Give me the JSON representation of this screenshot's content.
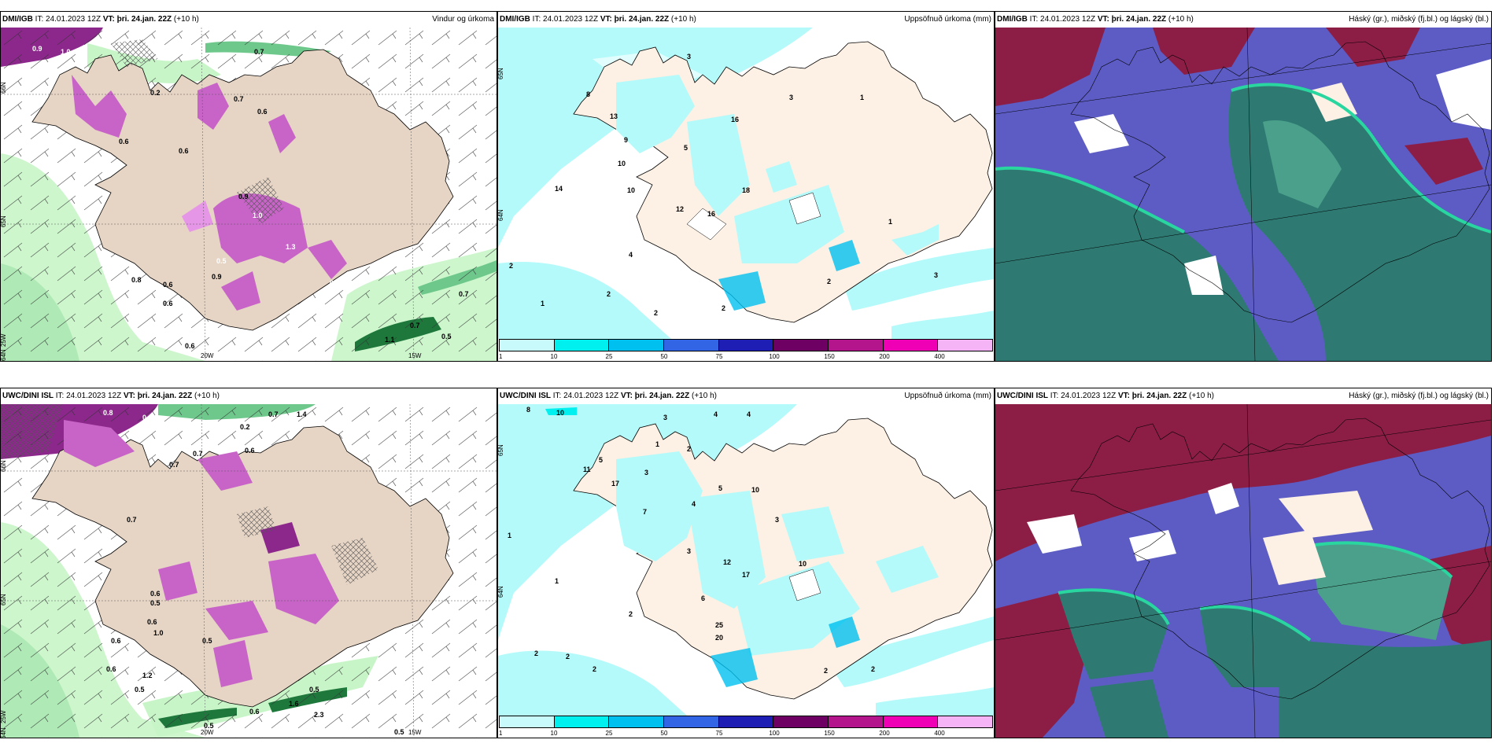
{
  "panels": [
    {
      "id": "p1",
      "model": "DMI/IGB",
      "it_label": "IT:",
      "it_value": "24.01.2023 12Z",
      "vt_label": "VT:",
      "vt_value": "þri. 24.jan. 22Z",
      "lead": "(+10 h)",
      "right_title": "Vindur og úrkoma",
      "axis_labels": [
        "66N",
        "65N",
        "64N",
        "25W",
        "20W",
        "15W"
      ],
      "value_labels": [
        "0.9",
        "1.0",
        "0.7",
        "0.2",
        "0.7",
        "0.6",
        "0.6",
        "0.9",
        "0.8",
        "0.6",
        "0.6",
        "0.7",
        "0.7",
        "0.5",
        "1.1",
        "1.0",
        "1.3",
        "0.2",
        "0.5",
        "0.6",
        "0.9",
        "0.6"
      ]
    },
    {
      "id": "p2",
      "model": "DMI/IGB",
      "it_label": "IT:",
      "it_value": "24.01.2023 12Z",
      "vt_label": "VT:",
      "vt_value": "þri. 24.jan. 22Z",
      "lead": "(+10 h)",
      "right_title": "Uppsöfnuð úrkoma (mm)",
      "axis_labels": [
        "65N",
        "64N"
      ],
      "value_labels": [
        "3",
        "8",
        "13",
        "9",
        "10",
        "5",
        "16",
        "3",
        "1",
        "14",
        "10",
        "16",
        "12",
        "18",
        "4",
        "2",
        "2",
        "2",
        "1",
        "3",
        "2",
        "1",
        "2"
      ]
    },
    {
      "id": "p3",
      "model": "DMI/IGB",
      "it_label": "IT:",
      "it_value": "24.01.2023 12Z",
      "vt_label": "VT:",
      "vt_value": "þri. 24.jan. 22Z",
      "lead": "(+10 h)",
      "right_title": "Háský (gr.), miðský (fj.bl.) og lágský (bl.)"
    },
    {
      "id": "p4",
      "model": "UWC/DINI ISL",
      "it_label": "IT:",
      "it_value": "24.01.2023 12Z",
      "vt_label": "VT:",
      "vt_value": "þri. 24.jan. 22Z",
      "lead": "(+10 h)",
      "right_title": "",
      "axis_labels": [
        "66N",
        "65N",
        "64N",
        "25W",
        "20W",
        "15W"
      ],
      "value_labels": [
        "0.8",
        "0.4",
        "0.7",
        "1.4",
        "0.2",
        "0.7",
        "0.7",
        "0.6",
        "0.7",
        "0.6",
        "0.5",
        "0.6",
        "1.0",
        "0.6",
        "0.5",
        "1.2",
        "0.5",
        "0.6",
        "0.5",
        "1.6",
        "2.3",
        "0.5",
        "0.5",
        "0.6"
      ]
    },
    {
      "id": "p5",
      "model": "UWC/DINI ISL",
      "it_label": "IT:",
      "it_value": "24.01.2023 12Z",
      "vt_label": "VT:",
      "vt_value": "þri. 24.jan. 22Z",
      "lead": "(+10 h)",
      "right_title": "Uppsöfnuð úrkoma (mm)",
      "axis_labels": [
        "65N",
        "64N"
      ],
      "value_labels": [
        "8",
        "10",
        "3",
        "4",
        "4",
        "2",
        "1",
        "5",
        "11",
        "17",
        "3",
        "4",
        "7",
        "5",
        "10",
        "12",
        "17",
        "3",
        "3",
        "10",
        "6",
        "25",
        "20",
        "2",
        "2",
        "2",
        "2",
        "1",
        "1",
        "2",
        "2"
      ]
    },
    {
      "id": "p6",
      "model": "UWC/DINI ISL",
      "it_label": "IT:",
      "it_value": "24.01.2023 12Z",
      "vt_label": "VT:",
      "vt_value": "þri. 24.jan. 22Z",
      "lead": "(+10 h)",
      "right_title": "Háský (gr.), miðský (fj.bl.) og lágský (bl.)"
    }
  ],
  "colorbar": {
    "ticks": [
      "1",
      "10",
      "25",
      "50",
      "75",
      "100",
      "150",
      "200",
      "400"
    ],
    "colors": [
      "#c8fafc",
      "#00f0f0",
      "#00c0f0",
      "#3264e6",
      "#1e1eb4",
      "#6e0064",
      "#b4148c",
      "#f000b4",
      "#f5b4f5"
    ]
  },
  "colors": {
    "land": "#fdf0e4",
    "land_wind": "#e6d4c4",
    "sea_white": "#ffffff",
    "rain_light": "#c8f5c8",
    "rain_mid": "#6ec88c",
    "rain_dark": "#1e783c",
    "snow_mid": "#c864c8",
    "snow_light": "#e696e6",
    "snow_dark": "#8c288c",
    "precip_cyan": "#b4fafa",
    "cloud_high": "#2e7a72",
    "cloud_high_light": "#4aa08a",
    "cloud_mid": "#5c5cc4",
    "cloud_low": "#8c1e46",
    "cloud_edge": "#2ad6a0"
  }
}
